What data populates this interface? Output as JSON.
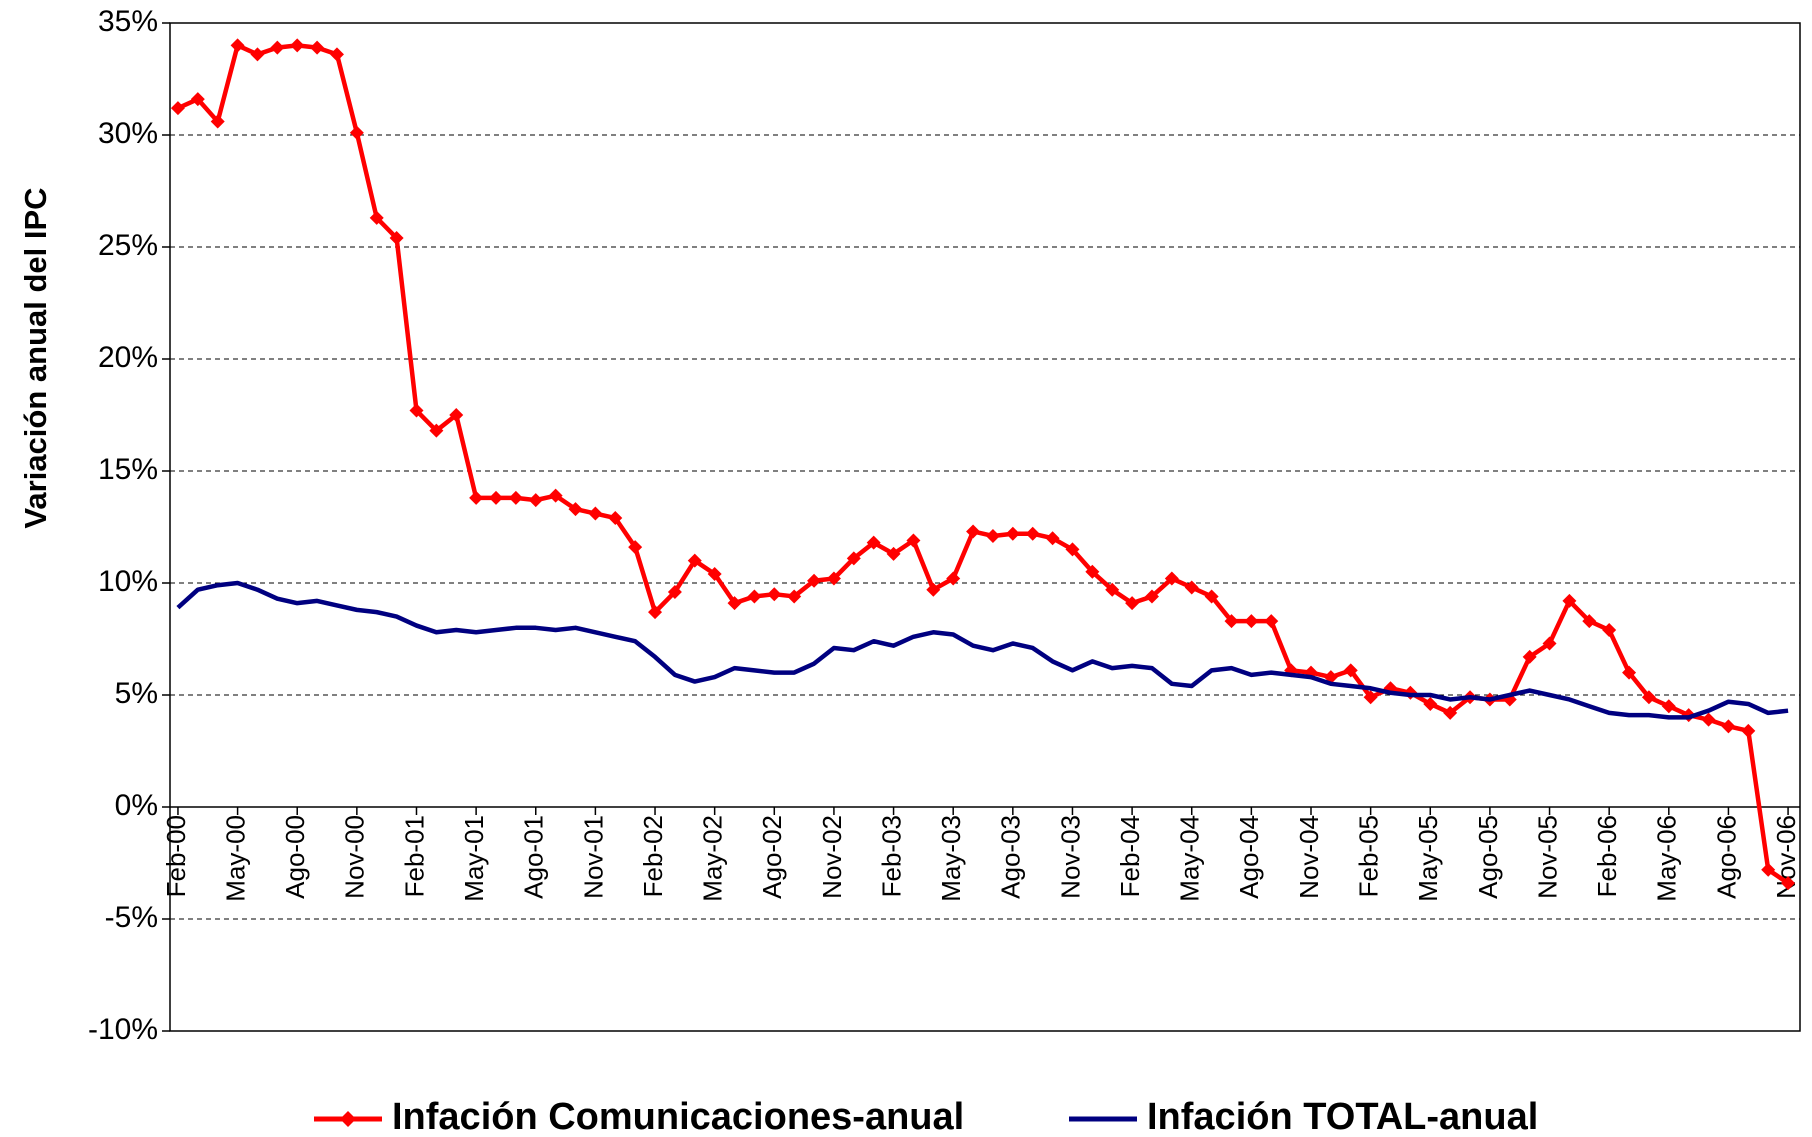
{
  "chart_data": {
    "type": "line",
    "y_label": "Variación anual del IPC",
    "categories": [
      "Feb-00",
      null,
      null,
      "May-00",
      null,
      null,
      "Ago-00",
      null,
      null,
      "Nov-00",
      null,
      null,
      "Feb-01",
      null,
      null,
      "May-01",
      null,
      null,
      "Ago-01",
      null,
      null,
      "Nov-01",
      null,
      null,
      "Feb-02",
      null,
      null,
      "May-02",
      null,
      null,
      "Ago-02",
      null,
      null,
      "Nov-02",
      null,
      null,
      "Feb-03",
      null,
      null,
      "May-03",
      null,
      null,
      "Ago-03",
      null,
      null,
      "Nov-03",
      null,
      null,
      "Feb-04",
      null,
      null,
      "May-04",
      null,
      null,
      "Ago-04",
      null,
      null,
      "Nov-04",
      null,
      null,
      "Feb-05",
      null,
      null,
      "May-05",
      null,
      null,
      "Ago-05",
      null,
      null,
      "Nov-05",
      null,
      null,
      "Feb-06",
      null,
      null,
      "May-06",
      null,
      null,
      "Ago-06",
      null,
      null,
      "Nov-06"
    ],
    "series": [
      {
        "name": "Infación Comunicaciones-anual",
        "color": "#ff0000",
        "marker": "diamond",
        "values": [
          31.2,
          31.6,
          30.6,
          34.0,
          33.6,
          33.9,
          34.0,
          33.9,
          33.6,
          30.1,
          26.3,
          25.4,
          17.7,
          16.8,
          17.5,
          13.8,
          13.8,
          13.8,
          13.7,
          13.9,
          13.3,
          13.1,
          12.9,
          11.6,
          8.7,
          9.6,
          11.0,
          10.4,
          9.1,
          9.4,
          9.5,
          9.4,
          10.1,
          10.2,
          11.1,
          11.8,
          11.3,
          11.9,
          9.7,
          10.2,
          12.3,
          12.1,
          12.2,
          12.2,
          12.0,
          11.5,
          10.5,
          9.7,
          9.1,
          9.4,
          10.2,
          9.8,
          9.4,
          8.3,
          8.3,
          8.3,
          6.1,
          6.0,
          5.8,
          6.1,
          4.9,
          5.3,
          5.1,
          4.6,
          4.2,
          4.9,
          4.8,
          4.8,
          6.7,
          7.3,
          9.2,
          8.3,
          7.9,
          6.0,
          4.9,
          4.5,
          4.1,
          3.9,
          3.6,
          3.4,
          -2.8,
          -3.4
        ]
      },
      {
        "name": "Infación TOTAL-anual",
        "color": "#000080",
        "values": [
          8.9,
          9.7,
          9.9,
          10.0,
          9.7,
          9.3,
          9.1,
          9.2,
          9.0,
          8.8,
          8.7,
          8.5,
          8.1,
          7.8,
          7.9,
          7.8,
          7.9,
          8.0,
          8.0,
          7.9,
          8.0,
          7.8,
          7.6,
          7.4,
          6.7,
          5.9,
          5.6,
          5.8,
          6.2,
          6.1,
          6.0,
          6.0,
          6.4,
          7.1,
          7.0,
          7.4,
          7.2,
          7.6,
          7.8,
          7.7,
          7.2,
          7.0,
          7.3,
          7.1,
          6.5,
          6.1,
          6.5,
          6.2,
          6.3,
          6.2,
          5.5,
          5.4,
          6.1,
          6.2,
          5.9,
          6.0,
          5.9,
          5.8,
          5.5,
          5.4,
          5.3,
          5.1,
          5.0,
          5.0,
          4.8,
          4.9,
          4.8,
          5.0,
          5.2,
          5.0,
          4.8,
          4.5,
          4.2,
          4.1,
          4.1,
          4.0,
          4.0,
          4.3,
          4.7,
          4.6,
          4.2,
          4.3
        ]
      }
    ],
    "ylim": [
      -10,
      35
    ],
    "yticks": [
      {
        "value": -10,
        "label": "-10%"
      },
      {
        "value": -5,
        "label": "-5%"
      },
      {
        "value": 0,
        "label": "0%"
      },
      {
        "value": 5,
        "label": "5%"
      },
      {
        "value": 10,
        "label": "10%"
      },
      {
        "value": 15,
        "label": "15%"
      },
      {
        "value": 20,
        "label": "20%"
      },
      {
        "value": 25,
        "label": "25%"
      },
      {
        "value": 30,
        "label": "30%"
      },
      {
        "value": 35,
        "label": "35%"
      }
    ],
    "grid": true,
    "legend": "bottom"
  }
}
